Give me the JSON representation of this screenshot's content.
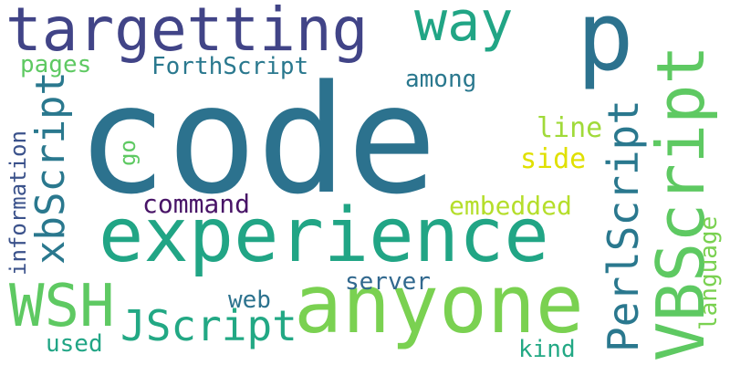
{
  "words": [
    {
      "text": "code",
      "color": "#2c728e"
    },
    {
      "text": "p",
      "color": "#2c728e"
    },
    {
      "text": "targetting",
      "color": "#414487"
    },
    {
      "text": "way",
      "color": "#21a585"
    },
    {
      "text": "experience",
      "color": "#21a585"
    },
    {
      "text": "anyone",
      "color": "#7ad151"
    },
    {
      "text": "VBScript",
      "color": "#5ec962"
    },
    {
      "text": "WSH",
      "color": "#5ec962"
    },
    {
      "text": "PerlScript",
      "color": "#2a788e"
    },
    {
      "text": "xbScript",
      "color": "#2a788e"
    },
    {
      "text": "JScript",
      "color": "#22a884"
    },
    {
      "text": "ForthScript",
      "color": "#2a788e"
    },
    {
      "text": "among",
      "color": "#2a788e"
    },
    {
      "text": "pages",
      "color": "#5ec962"
    },
    {
      "text": "information",
      "color": "#3b528b"
    },
    {
      "text": "go",
      "color": "#5ec962"
    },
    {
      "text": "line",
      "color": "#a0da39"
    },
    {
      "text": "side",
      "color": "#e0e000"
    },
    {
      "text": "command",
      "color": "#481467"
    },
    {
      "text": "embedded",
      "color": "#b5de2b"
    },
    {
      "text": "language",
      "color": "#7ad151"
    },
    {
      "text": "server",
      "color": "#31688e"
    },
    {
      "text": "web",
      "color": "#2c728e"
    },
    {
      "text": "used",
      "color": "#21a585"
    },
    {
      "text": "kind",
      "color": "#22a884"
    }
  ]
}
